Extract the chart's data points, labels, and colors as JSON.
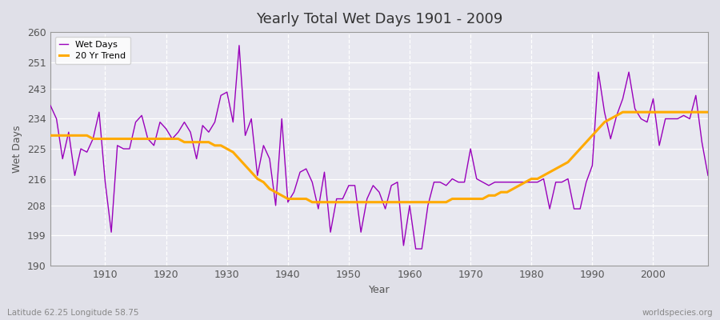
{
  "title": "Yearly Total Wet Days 1901 - 2009",
  "xlabel": "Year",
  "ylabel": "Wet Days",
  "subtitle": "Latitude 62.25 Longitude 58.75",
  "watermark": "worldspecies.org",
  "ylim": [
    190,
    260
  ],
  "yticks": [
    190,
    199,
    208,
    216,
    225,
    234,
    243,
    251,
    260
  ],
  "xlim": [
    1901,
    2009
  ],
  "xticks": [
    1910,
    1920,
    1930,
    1940,
    1950,
    1960,
    1970,
    1980,
    1990,
    2000
  ],
  "bg_color": "#e0e0e8",
  "plot_bg_color": "#e8e8f0",
  "wet_days_color": "#9900bb",
  "trend_color": "#ffaa00",
  "wet_days_linewidth": 1.0,
  "trend_linewidth": 2.2,
  "years": [
    1901,
    1902,
    1903,
    1904,
    1905,
    1906,
    1907,
    1908,
    1909,
    1910,
    1911,
    1912,
    1913,
    1914,
    1915,
    1916,
    1917,
    1918,
    1919,
    1920,
    1921,
    1922,
    1923,
    1924,
    1925,
    1926,
    1927,
    1928,
    1929,
    1930,
    1931,
    1932,
    1933,
    1934,
    1935,
    1936,
    1937,
    1938,
    1939,
    1940,
    1941,
    1942,
    1943,
    1944,
    1945,
    1946,
    1947,
    1948,
    1949,
    1950,
    1951,
    1952,
    1953,
    1954,
    1955,
    1956,
    1957,
    1958,
    1959,
    1960,
    1961,
    1962,
    1963,
    1964,
    1965,
    1966,
    1967,
    1968,
    1969,
    1970,
    1971,
    1972,
    1973,
    1974,
    1975,
    1976,
    1977,
    1978,
    1979,
    1980,
    1981,
    1982,
    1983,
    1984,
    1985,
    1986,
    1987,
    1988,
    1989,
    1990,
    1991,
    1992,
    1993,
    1994,
    1995,
    1996,
    1997,
    1998,
    1999,
    2000,
    2001,
    2002,
    2003,
    2004,
    2005,
    2006,
    2007,
    2008,
    2009
  ],
  "wet_days": [
    238,
    234,
    222,
    230,
    217,
    225,
    224,
    228,
    236,
    215,
    200,
    226,
    225,
    225,
    233,
    235,
    228,
    226,
    233,
    231,
    228,
    230,
    233,
    230,
    222,
    232,
    230,
    233,
    241,
    242,
    233,
    256,
    229,
    234,
    217,
    226,
    222,
    208,
    234,
    209,
    212,
    218,
    219,
    215,
    207,
    218,
    200,
    210,
    210,
    214,
    214,
    200,
    210,
    214,
    212,
    207,
    214,
    215,
    196,
    208,
    195,
    195,
    208,
    215,
    215,
    214,
    216,
    215,
    215,
    225,
    216,
    215,
    214,
    215,
    215,
    215,
    215,
    215,
    215,
    215,
    215,
    216,
    207,
    215,
    215,
    216,
    207,
    207,
    215,
    220,
    248,
    236,
    228,
    235,
    240,
    248,
    237,
    234,
    233,
    240,
    226,
    234,
    234,
    234,
    235,
    234,
    241,
    227,
    217
  ],
  "trend": [
    229,
    229,
    229,
    229,
    229,
    229,
    229,
    228,
    228,
    228,
    228,
    228,
    228,
    228,
    228,
    228,
    228,
    228,
    228,
    228,
    228,
    228,
    227,
    227,
    227,
    227,
    227,
    226,
    226,
    225,
    224,
    222,
    220,
    218,
    216,
    215,
    213,
    212,
    211,
    210,
    210,
    210,
    210,
    209,
    209,
    209,
    209,
    209,
    209,
    209,
    209,
    209,
    209,
    209,
    209,
    209,
    209,
    209,
    209,
    209,
    209,
    209,
    209,
    209,
    209,
    209,
    210,
    210,
    210,
    210,
    210,
    210,
    211,
    211,
    212,
    212,
    213,
    214,
    215,
    216,
    216,
    217,
    218,
    219,
    220,
    221,
    223,
    225,
    227,
    229,
    231,
    233,
    234,
    235,
    236,
    236,
    236,
    236,
    236,
    236,
    236,
    236,
    236,
    236,
    236,
    236,
    236,
    236,
    236
  ]
}
